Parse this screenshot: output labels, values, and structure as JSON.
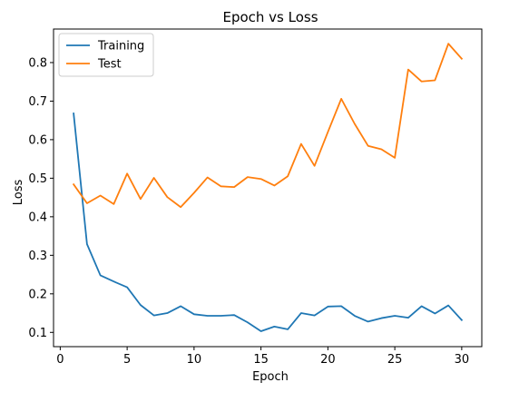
{
  "chart_data": {
    "type": "line",
    "title": "Epoch vs Loss",
    "xlabel": "Epoch",
    "ylabel": "Loss",
    "xlim": [
      -0.5,
      31.5
    ],
    "ylim": [
      0.063,
      0.887
    ],
    "x_ticks": [
      0,
      5,
      10,
      15,
      20,
      25,
      30
    ],
    "x_tick_labels": [
      "0",
      "5",
      "10",
      "15",
      "20",
      "25",
      "30"
    ],
    "y_ticks": [
      0.1,
      0.2,
      0.3,
      0.4,
      0.5,
      0.6,
      0.7,
      0.8
    ],
    "y_tick_labels": [
      "0.1",
      "0.2",
      "0.3",
      "0.4",
      "0.5",
      "0.6",
      "0.7",
      "0.8"
    ],
    "grid": false,
    "legend_position": "top-left",
    "x": [
      1,
      2,
      3,
      4,
      5,
      6,
      7,
      8,
      9,
      10,
      11,
      12,
      13,
      14,
      15,
      16,
      17,
      18,
      19,
      20,
      21,
      22,
      23,
      24,
      25,
      26,
      27,
      28,
      29,
      30
    ],
    "series": [
      {
        "name": "Training",
        "color": "#1f77b4",
        "values": [
          0.668,
          0.329,
          0.248,
          0.232,
          0.217,
          0.171,
          0.144,
          0.15,
          0.168,
          0.147,
          0.143,
          0.143,
          0.145,
          0.126,
          0.103,
          0.115,
          0.108,
          0.15,
          0.144,
          0.167,
          0.168,
          0.143,
          0.128,
          0.137,
          0.143,
          0.138,
          0.168,
          0.149,
          0.17,
          0.132
        ]
      },
      {
        "name": "Test",
        "color": "#ff7f0e",
        "values": [
          0.484,
          0.435,
          0.455,
          0.433,
          0.512,
          0.446,
          0.501,
          0.451,
          0.425,
          0.462,
          0.502,
          0.479,
          0.477,
          0.503,
          0.498,
          0.481,
          0.505,
          0.589,
          0.532,
          0.62,
          0.706,
          0.641,
          0.584,
          0.575,
          0.553,
          0.782,
          0.751,
          0.754,
          0.849,
          0.81
        ]
      }
    ]
  }
}
